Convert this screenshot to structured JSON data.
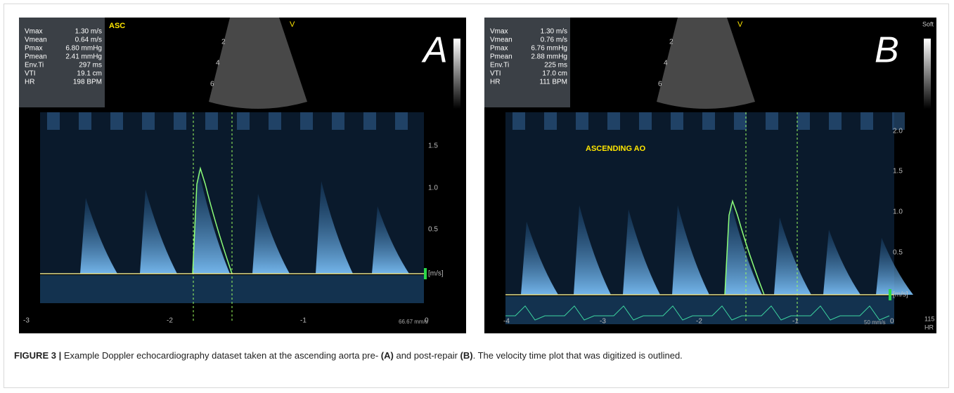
{
  "panels": [
    {
      "label": "A",
      "tag": "ASC",
      "view_marker": "V",
      "measurements": [
        {
          "name": "Vmax",
          "value": "1.30 m/s"
        },
        {
          "name": "Vmean",
          "value": "0.64 m/s"
        },
        {
          "name": "Pmax",
          "value": "6.80 mmHg"
        },
        {
          "name": "Pmean",
          "value": "2.41 mmHg"
        },
        {
          "name": "Env.Ti",
          "value": "297 ms"
        },
        {
          "name": "VTI",
          "value": "19.1 cm"
        },
        {
          "name": "HR",
          "value": "198 BPM"
        }
      ],
      "depth_marks": [
        "2",
        "4",
        "6"
      ],
      "velocity_ticks": [
        "1.5",
        "1.0",
        "0.5"
      ],
      "velocity_unit": "[m/s]",
      "time_ticks": [
        "-3",
        "-2",
        "-1",
        "0"
      ],
      "sweep_speed": "66.67 mm/s"
    },
    {
      "label": "B",
      "view_marker": "V",
      "scale_label": "Soft",
      "measurements": [
        {
          "name": "Vmax",
          "value": "1.30 m/s"
        },
        {
          "name": "Vmean",
          "value": "0.76 m/s"
        },
        {
          "name": "Pmax",
          "value": "6.76 mmHg"
        },
        {
          "name": "Pmean",
          "value": "2.88 mmHg"
        },
        {
          "name": "Env.Ti",
          "value": "225 ms"
        },
        {
          "name": "VTI",
          "value": "17.0 cm"
        },
        {
          "name": "HR",
          "value": "111 BPM"
        }
      ],
      "depth_marks": [
        "2",
        "4",
        "6"
      ],
      "annotation": "ASCENDING AO",
      "velocity_ticks": [
        "2.0",
        "1.5",
        "1.0",
        "0.5"
      ],
      "velocity_unit": "[m/s]",
      "time_ticks": [
        "-4",
        "-3",
        "-2",
        "-1",
        "0"
      ],
      "sweep_speed": "50 mm/s",
      "heart_rate": "115",
      "heart_rate_label": "HR"
    }
  ],
  "caption": {
    "figure": "FIGURE 3 |",
    "text_1": "Example Doppler echocardiography dataset taken at the ascending aorta pre-",
    "ref_a": "(A)",
    "text_2": "and post-repair",
    "ref_b": "(B)",
    "text_3": ". The velocity time plot that was digitized is outlined."
  }
}
